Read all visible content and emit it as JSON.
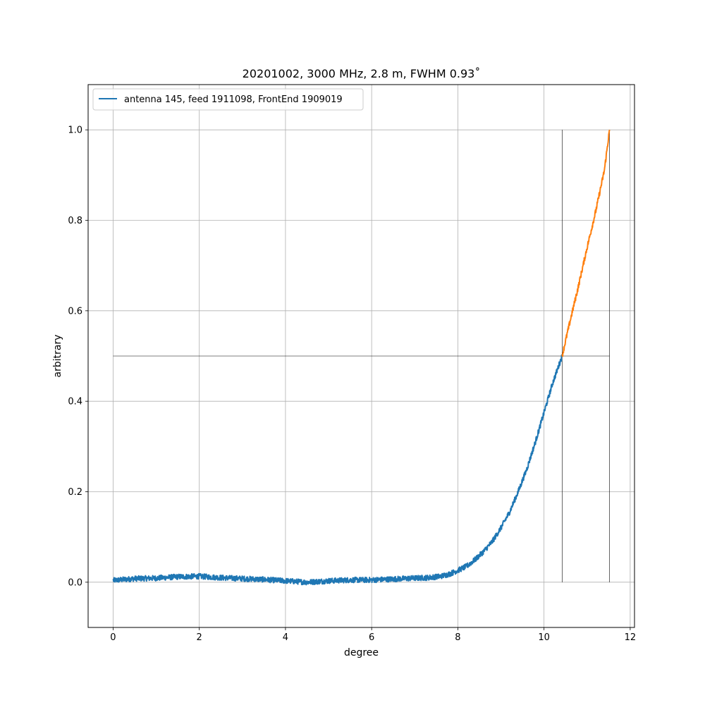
{
  "chart_data": {
    "type": "line",
    "title": "20201002, 3000 MHz, 2.8 m, FWHM 0.93˚",
    "xlabel": "degree",
    "ylabel": "arbitrary",
    "xlim": [
      -0.58,
      12.1
    ],
    "ylim": [
      -0.1,
      1.1
    ],
    "grid": true,
    "legend_position": "top-left",
    "xticks": [
      0,
      2,
      4,
      6,
      8,
      10,
      12
    ],
    "xtick_labels": [
      "0",
      "2",
      "4",
      "6",
      "8",
      "10",
      "12"
    ],
    "yticks": [
      0.0,
      0.2,
      0.4,
      0.6,
      0.8,
      1.0
    ],
    "ytick_labels": [
      "0.0",
      "0.2",
      "0.4",
      "0.6",
      "0.8",
      "1.0"
    ],
    "series": [
      {
        "name": "antenna 145, feed 1911098, FrontEnd 1909019",
        "color": "#1f77b4",
        "x": [
          0,
          0.5,
          1.0,
          1.5,
          2.0,
          2.5,
          3.0,
          3.5,
          4.0,
          4.5,
          5.0,
          5.5,
          6.0,
          6.5,
          7.0,
          7.3,
          7.6,
          7.8,
          8.0,
          8.2,
          8.4,
          8.6,
          8.8,
          9.0,
          9.2,
          9.4,
          9.6,
          9.8,
          10.0,
          10.2,
          10.42
        ],
        "y": [
          0.004,
          0.008,
          0.009,
          0.012,
          0.013,
          0.01,
          0.008,
          0.006,
          0.003,
          0.0,
          0.003,
          0.005,
          0.005,
          0.007,
          0.009,
          0.01,
          0.013,
          0.018,
          0.026,
          0.035,
          0.05,
          0.068,
          0.09,
          0.12,
          0.155,
          0.2,
          0.25,
          0.31,
          0.375,
          0.44,
          0.5
        ]
      },
      {
        "color": "#ff7f0e",
        "x": [
          10.42,
          10.6,
          10.8,
          11.0,
          11.2,
          11.4,
          11.52
        ],
        "y": [
          0.5,
          0.575,
          0.655,
          0.74,
          0.82,
          0.91,
          1.0
        ]
      }
    ],
    "reference_lines": {
      "color": "#000000",
      "horizontal": {
        "y": 0.5,
        "x_from": 0,
        "x_to": 11.52
      },
      "vertical": [
        {
          "x": 10.42,
          "y_from": 0.0,
          "y_to": 1.0
        },
        {
          "x": 11.52,
          "y_from": 0.0,
          "y_to": 1.0
        }
      ]
    }
  }
}
